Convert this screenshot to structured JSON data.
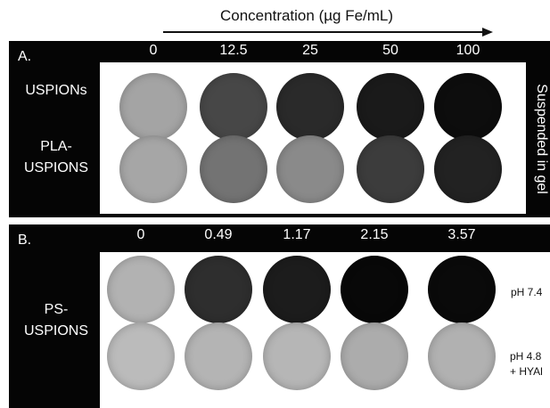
{
  "header": {
    "title": "Concentration (µg Fe/mL)"
  },
  "panel_a": {
    "label": "A.",
    "concentrations": [
      "0",
      "12.5",
      "25",
      "50",
      "100"
    ],
    "rows": [
      {
        "label": "USPIONs",
        "shades": [
          "#a4a4a4",
          "#474747",
          "#2a2a2a",
          "#1a1a1a",
          "#0d0d0d"
        ]
      },
      {
        "label": "PLA-\nUSPIONS",
        "shades": [
          "#a6a6a6",
          "#737373",
          "#8a8a8a",
          "#3c3c3c",
          "#222222"
        ]
      }
    ],
    "side_label": "Suspended in gel"
  },
  "panel_b": {
    "label": "B.",
    "concentrations": [
      "0",
      "0.49",
      "1.17",
      "2.15",
      "3.57"
    ],
    "row_label": "PS-\nUSPIONS",
    "rows": [
      {
        "condition": "pH 7.4",
        "shades": [
          "#b2b2b2",
          "#2e2e2e",
          "#1c1c1c",
          "#080808",
          "#0a0a0a"
        ]
      },
      {
        "condition": "pH 4.8\n+ HYAl",
        "shades": [
          "#bbbbbb",
          "#b4b4b4",
          "#b6b6b6",
          "#acacac",
          "#b1b1b1"
        ]
      }
    ]
  },
  "colors": {
    "panel": "#050505",
    "label_text": "#ffffff",
    "background": "#ffffff"
  }
}
